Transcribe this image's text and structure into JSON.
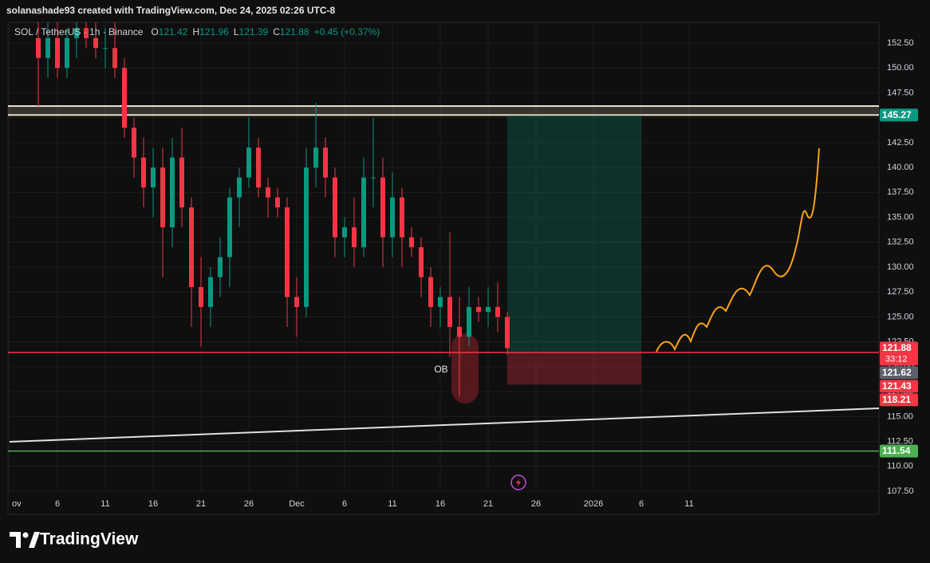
{
  "header": {
    "text": "solanashade93 created with TradingView.com, Dec 24, 2025 02:26 UTC-8"
  },
  "brand": "TradingView",
  "chart_data": {
    "type": "candlestick",
    "symbol": "SOL / TetherUS · 1h · Binance",
    "ohlc_legend": [
      {
        "key": "O",
        "value": "121.42"
      },
      {
        "key": "H",
        "value": "121.96"
      },
      {
        "key": "L",
        "value": "121.39"
      },
      {
        "key": "C",
        "value": "121.88"
      }
    ],
    "change": "+0.45 (+0.37%)",
    "x": [
      "2025-11-04",
      "2025-11-05",
      "2025-11-06",
      "2025-11-07",
      "2025-11-08",
      "2025-11-09",
      "2025-11-10",
      "2025-11-11",
      "2025-11-12",
      "2025-11-13",
      "2025-11-14",
      "2025-11-15",
      "2025-11-16",
      "2025-11-17",
      "2025-11-18",
      "2025-11-19",
      "2025-11-20",
      "2025-11-21",
      "2025-11-22",
      "2025-11-23",
      "2025-11-24",
      "2025-11-25",
      "2025-11-26",
      "2025-11-27",
      "2025-11-28",
      "2025-11-29",
      "2025-11-30",
      "2025-12-01",
      "2025-12-02",
      "2025-12-03",
      "2025-12-04",
      "2025-12-05",
      "2025-12-06",
      "2025-12-07",
      "2025-12-08",
      "2025-12-09",
      "2025-12-10",
      "2025-12-11",
      "2025-12-12",
      "2025-12-13",
      "2025-12-14",
      "2025-12-15",
      "2025-12-16",
      "2025-12-17",
      "2025-12-18",
      "2025-12-19",
      "2025-12-20",
      "2025-12-21",
      "2025-12-22",
      "2025-12-23"
    ],
    "open": [
      153,
      151,
      153,
      150,
      153,
      154,
      153,
      152,
      152,
      150,
      144,
      141,
      138,
      140,
      134,
      141,
      136,
      128,
      126,
      129,
      131,
      137,
      139,
      142,
      138,
      137,
      136,
      127,
      126,
      140,
      142,
      139,
      133,
      134,
      132,
      139,
      139,
      133,
      137,
      133,
      132,
      129,
      126,
      127,
      124,
      123,
      126,
      125.5,
      126,
      125
    ],
    "high": [
      155,
      155,
      155,
      154,
      155,
      155,
      155,
      154,
      155,
      151,
      145,
      143,
      142,
      142,
      143,
      144,
      137,
      131,
      130,
      133,
      138,
      140,
      145,
      143,
      139,
      138,
      137,
      129,
      142,
      146.5,
      143,
      140,
      135,
      137,
      141,
      145,
      141,
      139.5,
      138,
      134,
      133,
      130,
      128,
      133.5,
      127,
      128,
      127,
      128,
      128.5,
      125.5
    ],
    "low": [
      146,
      149,
      149,
      149,
      151,
      152,
      151,
      150,
      149,
      143,
      139,
      136,
      135,
      129,
      132,
      134,
      124,
      122,
      124,
      127,
      128,
      134,
      138,
      137,
      135,
      135,
      124,
      123,
      125,
      138,
      137,
      131,
      131,
      130,
      131,
      136,
      130,
      131,
      130,
      131,
      127,
      124,
      124,
      121,
      117,
      122,
      124.5,
      124,
      123.5,
      121.2
    ],
    "close": [
      151,
      153,
      150,
      153,
      154,
      153,
      152,
      152,
      150,
      144,
      141,
      138,
      140,
      134,
      141,
      136,
      128,
      126,
      129,
      131,
      137,
      139,
      142,
      138,
      137,
      136,
      127,
      126,
      140,
      142,
      139,
      133,
      134,
      132,
      139,
      139,
      133,
      137,
      133,
      132,
      129,
      126,
      127,
      124,
      123,
      126,
      125.5,
      126,
      125,
      121.88
    ],
    "up_color": "#089981",
    "down_color": "#f23645",
    "xlim": [
      "2025-11-01",
      "2026-01-31"
    ],
    "xticks": [
      {
        "value": "2025-11-01",
        "label": "ov"
      },
      {
        "value": "2025-11-06",
        "label": "6"
      },
      {
        "value": "2025-11-11",
        "label": "11"
      },
      {
        "value": "2025-11-16",
        "label": "16"
      },
      {
        "value": "2025-11-21",
        "label": "21"
      },
      {
        "value": "2025-11-26",
        "label": "26"
      },
      {
        "value": "2025-12-01",
        "label": "Dec"
      },
      {
        "value": "2025-12-06",
        "label": "6"
      },
      {
        "value": "2025-12-11",
        "label": "11"
      },
      {
        "value": "2025-12-16",
        "label": "16"
      },
      {
        "value": "2025-12-21",
        "label": "21"
      },
      {
        "value": "2025-12-26",
        "label": "26"
      },
      {
        "value": "2026-01-01",
        "label": "2026"
      },
      {
        "value": "2026-01-06",
        "label": "6"
      },
      {
        "value": "2026-01-11",
        "label": "11"
      }
    ],
    "ylim": [
      105.18,
      154.58
    ],
    "yticks": [
      {
        "value": 107.5,
        "label": "107.50"
      },
      {
        "value": 110,
        "label": "110.00"
      },
      {
        "value": 112.5,
        "label": "112.50"
      },
      {
        "value": 115,
        "label": "115.00"
      },
      {
        "value": 117.5,
        "label": "117.50"
      },
      {
        "value": 120,
        "label": "120.00"
      },
      {
        "value": 122.5,
        "label": "122.50"
      },
      {
        "value": 125,
        "label": "125.00"
      },
      {
        "value": 127.5,
        "label": "127.50"
      },
      {
        "value": 130,
        "label": "130.00"
      },
      {
        "value": 132.5,
        "label": "132.50"
      },
      {
        "value": 135,
        "label": "135.00"
      },
      {
        "value": 137.5,
        "label": "137.50"
      },
      {
        "value": 140,
        "label": "140.00"
      },
      {
        "value": 142.5,
        "label": "142.50"
      },
      {
        "value": 145,
        "label": "145.00"
      },
      {
        "value": 147.5,
        "label": "147.50"
      },
      {
        "value": 150,
        "label": "150.00"
      },
      {
        "value": 152.5,
        "label": "152.50"
      }
    ],
    "grid": true,
    "zone": {
      "top": 146.17,
      "bottom": 145.27,
      "color": "#e8e0c8"
    },
    "horizontal_lines": [
      {
        "value": 121.43,
        "color": "#f23645"
      },
      {
        "value": 111.54,
        "color": "#4caf50"
      }
    ],
    "trendline": {
      "x": [
        "2025-11-01",
        "2026-01-31"
      ],
      "y": [
        112.47,
        115.83
      ],
      "color": "#e0e0e0"
    },
    "position": {
      "start": "2025-12-23",
      "end": "2026-01-06",
      "entry": 121.43,
      "target": 145.27,
      "stop": 118.21
    },
    "annotation": "OB",
    "price_labels": [
      {
        "value": 145.27,
        "color": "#089981"
      },
      {
        "value": 121.88,
        "color": "#f23645",
        "countdown": "33:12"
      },
      {
        "value": 121.62,
        "color": "#5d606b"
      },
      {
        "value": 121.43,
        "color": "#f23645"
      },
      {
        "value": 118.21,
        "color": "#f23645"
      },
      {
        "value": 111.54,
        "color": "#4caf50"
      }
    ]
  }
}
